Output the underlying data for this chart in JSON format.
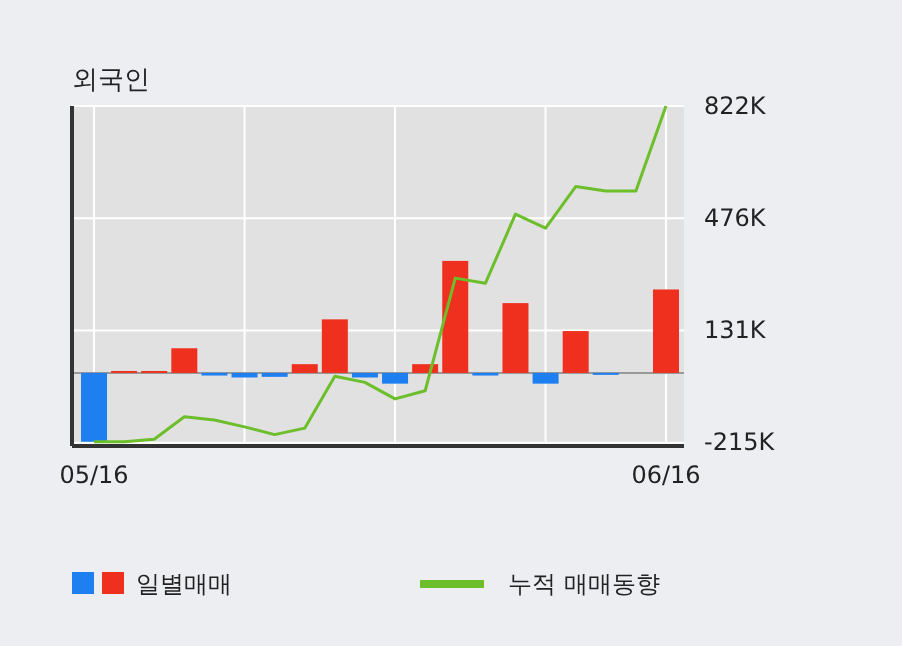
{
  "chart_data": {
    "type": "bar",
    "title": "외국인",
    "categories": [
      "05/16",
      null,
      null,
      null,
      null,
      null,
      null,
      null,
      null,
      null,
      null,
      null,
      null,
      null,
      null,
      null,
      null,
      null,
      null,
      "06/16"
    ],
    "series": [
      {
        "name": "일별매매",
        "colors": [
          "#1e7ff0",
          "#f0301e",
          "#f0301e",
          "#f0301e",
          "#1e7ff0",
          "#1e7ff0",
          "#1e7ff0",
          "#f0301e",
          "#f0301e",
          "#1e7ff0",
          "#1e7ff0",
          "#f0301e",
          "#f0301e",
          "#1e7ff0",
          "#f0301e",
          "#1e7ff0",
          "#f0301e",
          "#1e7ff0",
          "#f0301e",
          "#f0301e"
        ],
        "values": [
          -212000,
          6000,
          6000,
          76000,
          -8000,
          -14000,
          -12000,
          27000,
          165000,
          -14000,
          -33000,
          27000,
          345000,
          -8000,
          215000,
          -33000,
          129000,
          -6000,
          0,
          257000
        ]
      },
      {
        "name": "누적 매매동향",
        "type": "line",
        "color": "#6cbf2a",
        "values": [
          -212000,
          -212000,
          -204000,
          -135000,
          -145000,
          -166000,
          -190000,
          -170000,
          -10000,
          -29000,
          -80000,
          -55000,
          292000,
          276000,
          489000,
          446000,
          574000,
          560000,
          560000,
          822000
        ]
      }
    ],
    "ylim": [
      -225000,
      822000
    ],
    "yticks": [
      {
        "value": 822000,
        "label": "822K"
      },
      {
        "value": 476000,
        "label": "476K"
      },
      {
        "value": 131000,
        "label": "131K"
      },
      {
        "value": -215000,
        "label": "-215K"
      }
    ],
    "grid": true,
    "legend": "bottom"
  }
}
